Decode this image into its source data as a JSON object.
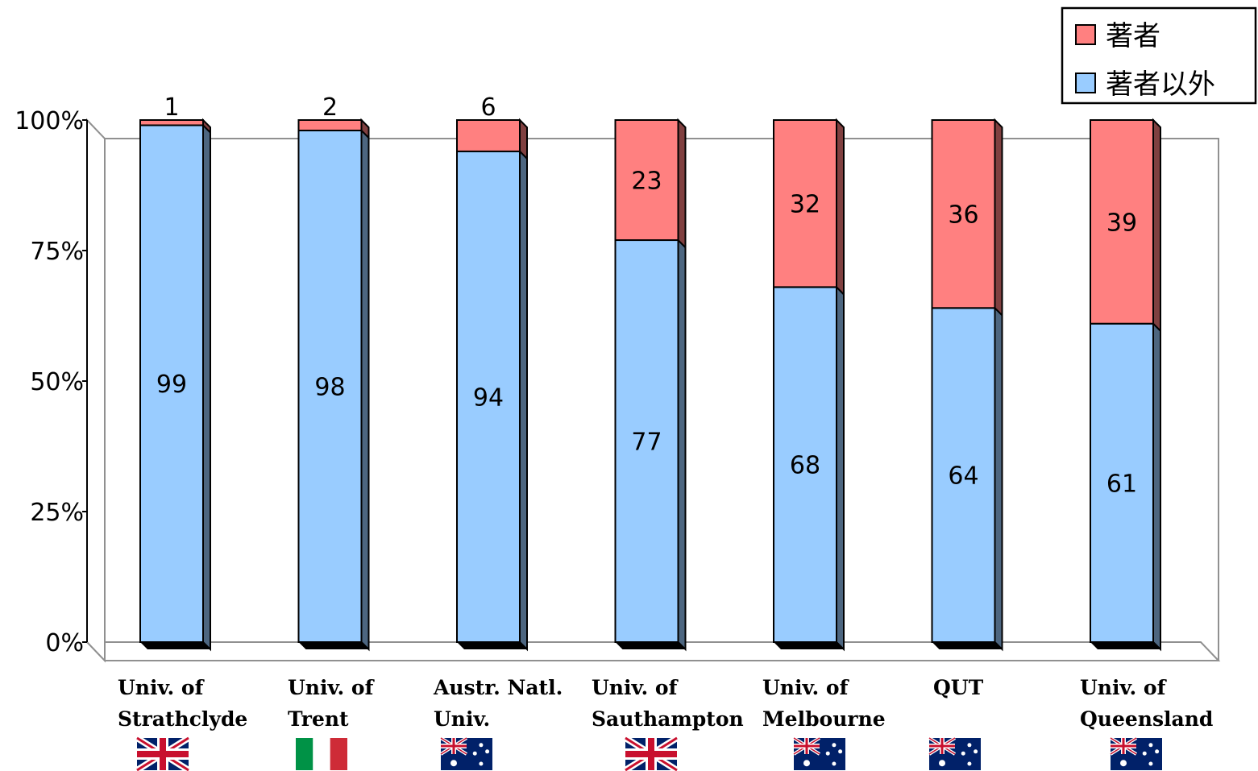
{
  "chart_data": {
    "type": "bar",
    "stacked": true,
    "percent": true,
    "categories": [
      [
        "Univ. of",
        "Strathclyde"
      ],
      [
        "Univ. of",
        "Trent"
      ],
      [
        "Austr. Natl.",
        "Univ."
      ],
      [
        "Univ. of",
        "Sauthampton"
      ],
      [
        "Univ. of",
        "Melbourne"
      ],
      [
        "QUT"
      ],
      [
        "Univ. of",
        "Queensland"
      ]
    ],
    "flags": [
      "uk-flag",
      "italy-flag",
      "australia-flag",
      "uk-flag",
      "australia-flag",
      "australia-flag",
      "australia-flag"
    ],
    "series": [
      {
        "name": "著者以外",
        "color": "#99ccff",
        "side_color": "#4d6680",
        "values": [
          99,
          98,
          94,
          77,
          68,
          64,
          61
        ]
      },
      {
        "name": "著者",
        "color": "#ff8080",
        "side_color": "#804040",
        "values": [
          1,
          2,
          6,
          23,
          32,
          36,
          39
        ]
      }
    ],
    "yticks": [
      "0%",
      "25%",
      "50%",
      "75%",
      "100%"
    ],
    "ylim": [
      0,
      100
    ],
    "legend_position": "top-right",
    "legend_order": [
      "著者",
      "著者以外"
    ],
    "grid": false
  }
}
